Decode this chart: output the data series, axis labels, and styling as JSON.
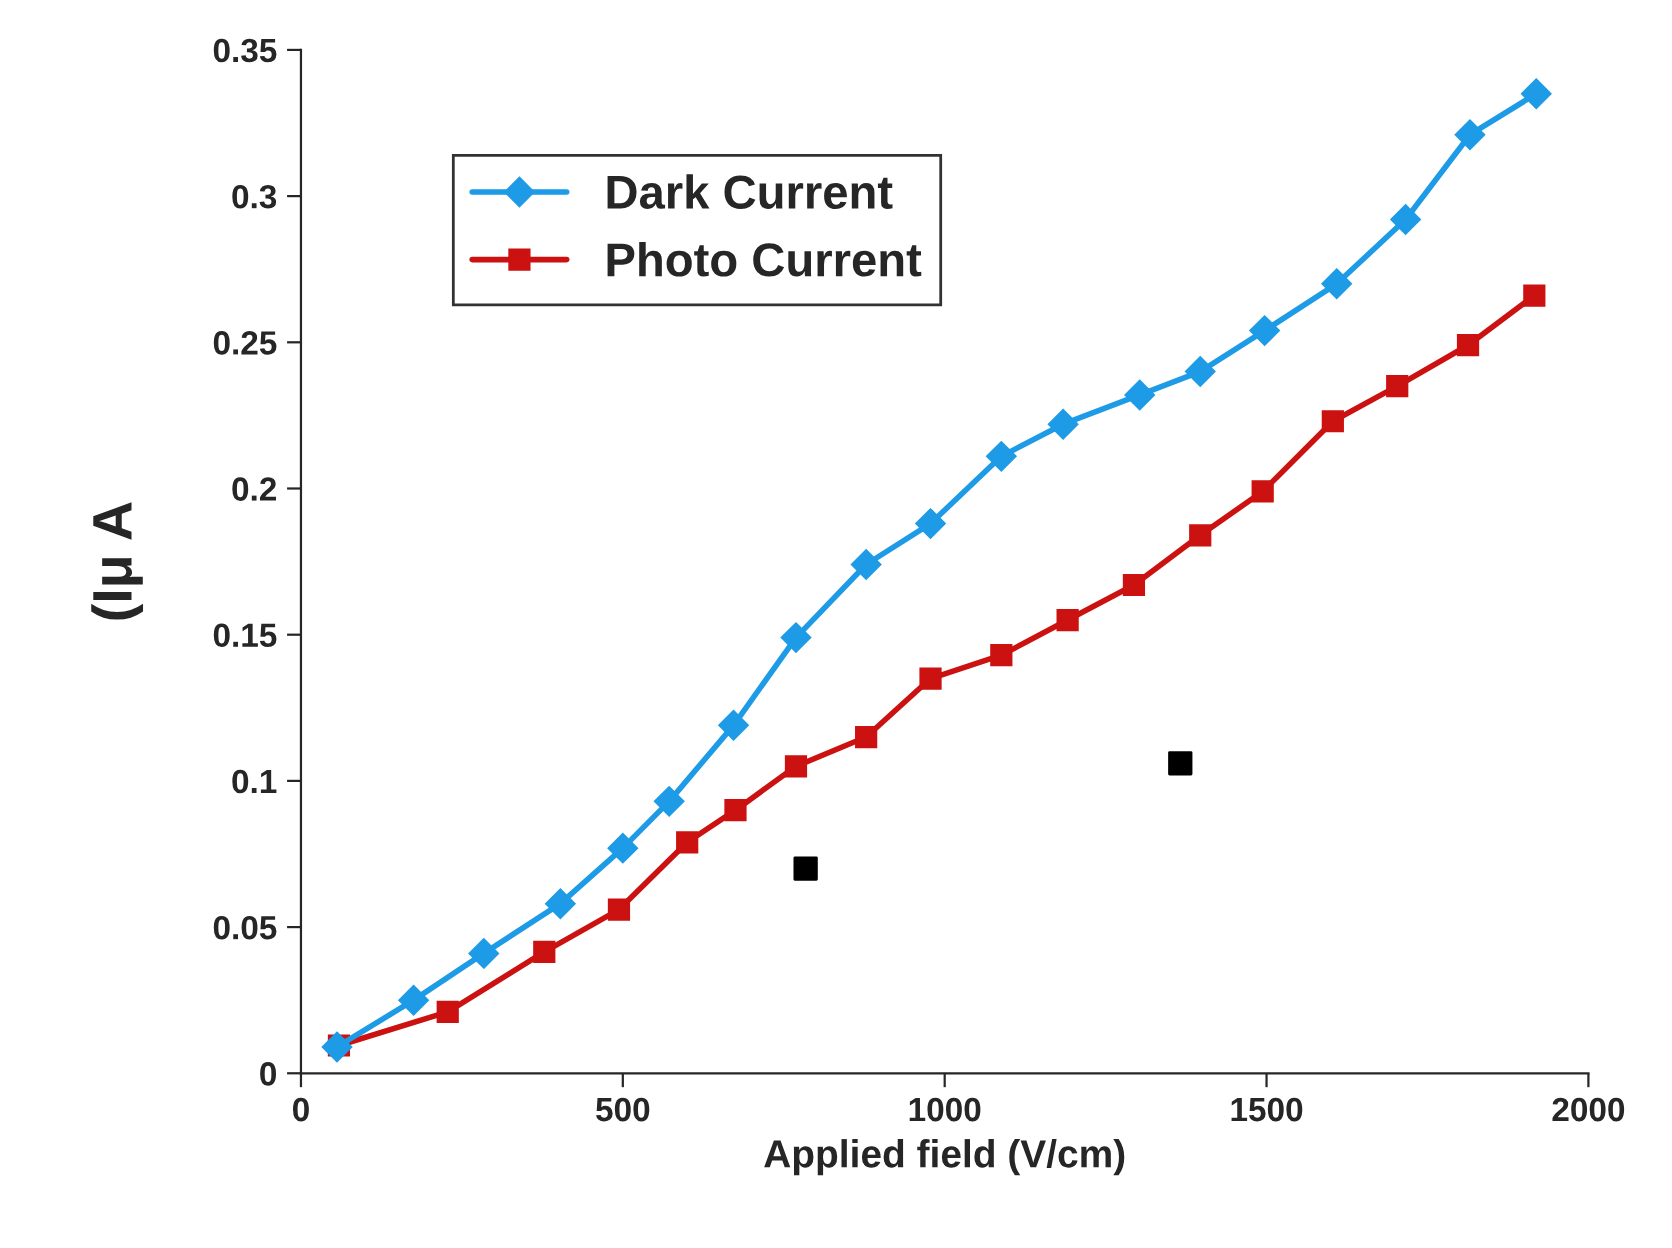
{
  "chart_data": {
    "type": "line",
    "xlabel": "Applied field (V/cm)",
    "ylabel": "(Iμ A",
    "xlim": [
      0,
      2000
    ],
    "ylim": [
      0,
      0.35
    ],
    "xticks": [
      0,
      500,
      1000,
      1500,
      2000
    ],
    "yticks": [
      0,
      {
        "value": 0.05,
        "label": "0.05"
      },
      {
        "value": 0.1,
        "label": "0.1"
      },
      {
        "value": 0.15,
        "label": "0.15"
      },
      {
        "value": 0.2,
        "label": "0.2"
      },
      {
        "value": 0.25,
        "label": "0.25"
      },
      {
        "value": 0.3,
        "label": "0.3"
      },
      {
        "value": 0.35,
        "label": "0.35"
      }
    ],
    "grid": false,
    "legend": "top left",
    "line_style": "solid",
    "series": [
      {
        "name": "Dark Current",
        "color": "#1e9be6",
        "marker": "diamond",
        "x": [
          56,
          175,
          284,
          403,
          500,
          572,
          672,
          769,
          878,
          978,
          1088,
          1184,
          1303,
          1397,
          1497,
          1609,
          1716,
          1816,
          1919
        ],
        "values": [
          0.009,
          0.025,
          0.041,
          0.058,
          0.077,
          0.093,
          0.119,
          0.149,
          0.174,
          0.188,
          0.211,
          0.222,
          0.232,
          0.24,
          0.254,
          0.27,
          0.292,
          0.321,
          0.335
        ]
      },
      {
        "name": "Photo Current",
        "color": "#cc1111",
        "marker": "square",
        "x": [
          59,
          228,
          378,
          494,
          600,
          675,
          769,
          878,
          978,
          1088,
          1191,
          1294,
          1397,
          1494,
          1603,
          1703,
          1813,
          1916
        ],
        "values": [
          0.0095,
          0.021,
          0.0415,
          0.056,
          0.079,
          0.09,
          0.105,
          0.115,
          0.135,
          0.143,
          0.155,
          0.167,
          0.184,
          0.199,
          0.223,
          0.235,
          0.249,
          0.266
        ]
      },
      {
        "type": "scatter",
        "color": "#000000",
        "marker": "square",
        "x": [
          784,
          1366
        ],
        "values": [
          0.07,
          0.106
        ]
      }
    ]
  }
}
